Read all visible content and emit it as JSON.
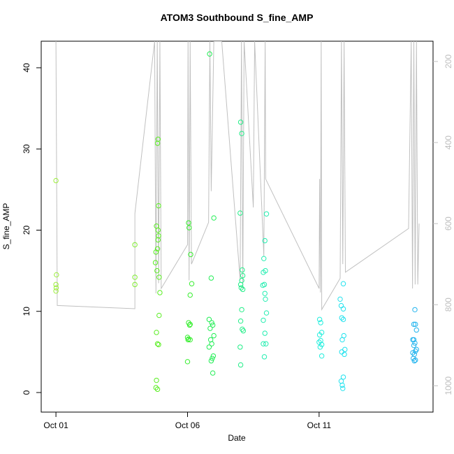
{
  "chart_data": {
    "type": "scatter",
    "title": "ATOM3 Southbound S_fine_AMP",
    "x_label": "Date",
    "y_label": "S_fine_AMP",
    "xlim": [
      -0.56,
      14.33
    ],
    "xticks": [
      {
        "value": 0,
        "label": "Oct 01"
      },
      {
        "value": 5,
        "label": "Oct 06"
      },
      {
        "value": 10,
        "label": "Oct 11"
      }
    ],
    "ylim": [
      -2.41,
      43.27
    ],
    "yticks": [
      0,
      10,
      20,
      30,
      40
    ],
    "y2lim": [
      1065,
      150
    ],
    "y2ticks": [
      200,
      400,
      600,
      800,
      1000
    ],
    "series": [
      {
        "color": "#9cee3c",
        "x": [
          0.0,
          0.02,
          0.0,
          0.01,
          0.0
        ],
        "values": [
          26.1,
          14.5,
          13.3,
          12.9,
          12.5
        ]
      },
      {
        "color": "#80ee30",
        "x": [
          3.0,
          3.0,
          3.0
        ],
        "values": [
          18.2,
          14.2,
          13.3
        ]
      },
      {
        "color": "#5aee22",
        "x": [
          3.88,
          3.86,
          3.9,
          3.82,
          3.88,
          3.9,
          3.88,
          3.86,
          3.8,
          3.78,
          3.84,
          3.92,
          3.95,
          3.92,
          3.82,
          3.86,
          3.9,
          3.82,
          3.8,
          3.86
        ],
        "values": [
          31.2,
          30.7,
          23.0,
          20.5,
          20.0,
          19.3,
          18.8,
          17.7,
          17.3,
          16.0,
          15.0,
          14.2,
          12.3,
          9.5,
          7.4,
          6.0,
          5.9,
          1.5,
          0.6,
          0.4
        ]
      },
      {
        "color": "#38ee30",
        "x": [
          5.04,
          5.06,
          5.12,
          5.16,
          5.1,
          5.04,
          5.1,
          5.08,
          5.0,
          5.04,
          5.1,
          5.02,
          5.0
        ],
        "values": [
          20.9,
          20.3,
          17.0,
          13.4,
          12.0,
          8.6,
          8.4,
          8.3,
          6.8,
          6.6,
          6.5,
          6.5,
          3.8
        ]
      },
      {
        "color": "#22ee55",
        "x": [
          5.84,
          6.0,
          5.9,
          5.82,
          5.92,
          5.96,
          5.86,
          6.0,
          5.88,
          5.92,
          5.82,
          5.98,
          5.94,
          5.9,
          5.96
        ],
        "values": [
          41.7,
          21.5,
          14.1,
          9.0,
          8.6,
          8.3,
          7.9,
          7.0,
          6.5,
          6.0,
          5.6,
          4.5,
          4.2,
          3.9,
          2.4
        ]
      },
      {
        "color": "#22ee88",
        "x": [
          7.02,
          7.06,
          7.0,
          7.08,
          7.1,
          7.06,
          7.02,
          7.04,
          7.1,
          7.06,
          7.02,
          7.08,
          7.12,
          7.0,
          7.02
        ],
        "values": [
          33.3,
          31.9,
          22.1,
          15.1,
          14.4,
          13.8,
          13.3,
          12.9,
          12.7,
          10.2,
          8.8,
          7.8,
          7.6,
          5.6,
          3.4
        ]
      },
      {
        "color": "#22eeb0",
        "x": [
          8.0,
          7.94,
          7.9,
          7.96,
          7.88,
          7.92,
          7.86,
          7.94,
          7.96,
          8.0,
          7.88,
          7.94,
          7.88,
          7.98,
          7.92
        ],
        "values": [
          22.0,
          18.7,
          16.5,
          15.0,
          14.8,
          13.3,
          13.2,
          12.2,
          11.5,
          9.8,
          8.9,
          7.3,
          6.0,
          6.0,
          4.4
        ]
      },
      {
        "color": "#22eedd",
        "x": [
          10.02,
          10.06,
          10.1,
          10.02,
          10.06,
          10.0,
          10.1,
          10.04,
          10.1
        ],
        "values": [
          9.0,
          8.6,
          7.4,
          7.1,
          6.4,
          6.2,
          5.9,
          5.6,
          4.5
        ]
      },
      {
        "color": "#22e2ee",
        "x": [
          10.92,
          10.8,
          10.84,
          10.92,
          10.86,
          10.92,
          10.94,
          10.88,
          10.98,
          10.86,
          10.96,
          10.92,
          10.84,
          10.88,
          10.9
        ],
        "values": [
          13.4,
          11.5,
          10.7,
          10.3,
          9.2,
          9.0,
          7.0,
          6.5,
          5.3,
          5.0,
          4.7,
          1.9,
          1.4,
          0.9,
          0.5
        ]
      },
      {
        "color": "#22b4ee",
        "x": [
          13.64,
          13.6,
          13.66,
          13.7,
          13.56,
          13.6,
          13.64,
          13.6,
          13.7,
          13.66,
          13.56,
          13.62,
          13.58,
          13.66,
          13.62
        ],
        "values": [
          10.2,
          8.4,
          8.4,
          7.7,
          6.5,
          6.5,
          6.1,
          5.8,
          5.3,
          5.1,
          4.9,
          4.7,
          4.2,
          4.0,
          3.9
        ]
      },
      {
        "type": "line",
        "axis": "y2",
        "color": "#c0c0c0",
        "x": [
          0,
          0.05,
          3.0,
          3.0,
          3.75,
          3.8,
          3.85,
          3.9,
          3.95,
          4.0,
          5.0,
          5.02,
          5.06,
          5.1,
          5.15,
          5.8,
          5.85,
          5.9,
          6.0,
          6.3,
          7.0,
          7.05,
          7.1,
          7.15,
          7.5,
          7.55,
          7.9,
          7.95,
          7.97,
          10.0,
          10.02,
          10.05,
          10.08,
          10.1,
          10.8,
          10.85,
          10.9,
          10.95,
          11.0,
          13.4,
          13.5,
          13.55,
          13.6,
          13.65,
          13.7,
          13.75,
          13.8
        ],
        "values": [
          150,
          802,
          810,
          575,
          150,
          772,
          150,
          747,
          150,
          760,
          652,
          150,
          740,
          150,
          700,
          597,
          150,
          520,
          150,
          150,
          740,
          150,
          760,
          150,
          560,
          150,
          680,
          150,
          490,
          760,
          490,
          770,
          150,
          812,
          735,
          150,
          700,
          150,
          720,
          612,
          150,
          760,
          150,
          750,
          150,
          750,
          600
        ]
      }
    ]
  }
}
